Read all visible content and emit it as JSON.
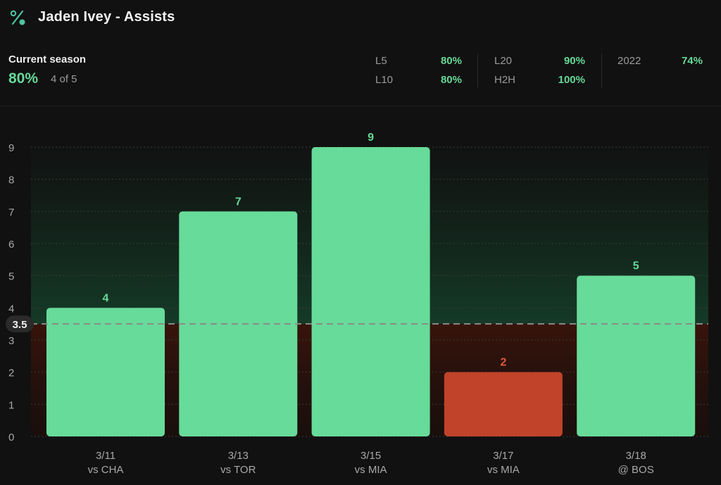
{
  "header": {
    "title": "Jaden Ivey - Assists",
    "icon": "percent-icon"
  },
  "summary": {
    "current_season_label": "Current season",
    "current_season_pct": "80%",
    "current_season_frac": "4 of 5",
    "stats": [
      {
        "label": "L5",
        "value": "80%"
      },
      {
        "label": "L10",
        "value": "80%"
      },
      {
        "label": "L20",
        "value": "90%"
      },
      {
        "label": "H2H",
        "value": "100%"
      },
      {
        "label": "2022",
        "value": "74%"
      }
    ]
  },
  "colors": {
    "over": "#67db99",
    "under": "#c0432a",
    "over_text": "#67d897",
    "under_text": "#e05a3a"
  },
  "chart_data": {
    "type": "bar",
    "categories": [
      "3/11",
      "3/13",
      "3/15",
      "3/17",
      "3/18"
    ],
    "opponents": [
      "vs CHA",
      "vs TOR",
      "vs MIA",
      "vs MIA",
      "@ BOS"
    ],
    "values": [
      4,
      7,
      9,
      2,
      5
    ],
    "line": 3.5,
    "line_label": "3.5",
    "yticks": [
      "0",
      "1",
      "2",
      "3",
      "4",
      "5",
      "6",
      "7",
      "8",
      "9"
    ],
    "ylim": [
      0,
      9
    ],
    "grid": true
  }
}
